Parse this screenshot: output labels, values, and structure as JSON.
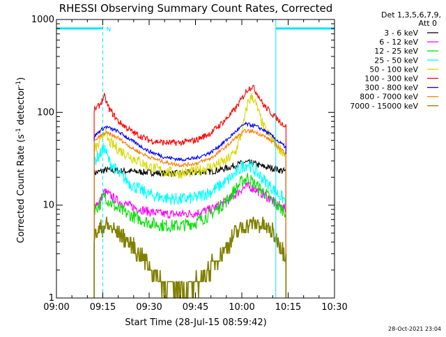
{
  "chart_data": {
    "type": "line",
    "title": "RHESSI Observing Summary Count Rates, Corrected",
    "xlabel": "Start Time (28-Jul-15 08:59:42)",
    "ylabel": "Corrected Count Rate (s",
    "ylabel_sup1": "-1",
    "ylabel_mid": " detector",
    "ylabel_sup2": "-1",
    "ylabel_end": ")",
    "yscale": "log",
    "ylim": [
      1,
      1000
    ],
    "xlim_minutes": [
      0,
      90
    ],
    "x_ticks": [
      {
        "m": 0,
        "label": "09:00"
      },
      {
        "m": 15,
        "label": "09:15"
      },
      {
        "m": 30,
        "label": "09:30"
      },
      {
        "m": 45,
        "label": "09:45"
      },
      {
        "m": 60,
        "label": "10:00"
      },
      {
        "m": 75,
        "label": "10:15"
      },
      {
        "m": 90,
        "label": "10:30"
      }
    ],
    "y_ticks": [
      {
        "v": 1,
        "label": "1"
      },
      {
        "v": 10,
        "label": "10"
      },
      {
        "v": 100,
        "label": "100"
      },
      {
        "v": 1000,
        "label": "1000"
      }
    ],
    "legend_header": [
      "Det 1,3,5,6,7,9,",
      "Att 0"
    ],
    "legend_placement": "right",
    "annotations": {
      "night_marker": "N",
      "footer": "28-Oct-2021 23:04"
    },
    "data_start_min": 12.2,
    "data_end_min": 74.3,
    "night_intervals_min": [
      [
        0,
        15.0
      ],
      [
        71.0,
        90
      ]
    ],
    "night_bar_level": 800,
    "series": [
      {
        "name": "3 - 6 keV",
        "color": "#000000",
        "noise": 0.035,
        "x": [
          12.2,
          14,
          16,
          20,
          25,
          30,
          35,
          40,
          45,
          50,
          55,
          58,
          61,
          64,
          67,
          70,
          72,
          74.3
        ],
        "y": [
          22,
          23,
          24,
          23.5,
          23,
          22.5,
          22,
          22,
          22.5,
          23,
          25,
          27,
          29,
          28,
          26,
          25,
          24,
          23
        ]
      },
      {
        "name": "6 - 12 keV",
        "color": "#ff00ff",
        "noise": 0.05,
        "x": [
          12.2,
          14,
          15.5,
          17,
          20,
          25,
          30,
          35,
          40,
          45,
          50,
          55,
          58,
          60,
          62,
          64,
          67,
          70,
          72,
          74.3
        ],
        "y": [
          10,
          11,
          14,
          13,
          11,
          9.5,
          8.5,
          8,
          8,
          8.2,
          9,
          11,
          13,
          15,
          16,
          15,
          13,
          11,
          10,
          9
        ]
      },
      {
        "name": "12 - 25 keV",
        "color": "#00e000",
        "noise": 0.07,
        "x": [
          12.2,
          14,
          15.5,
          17,
          20,
          25,
          30,
          35,
          40,
          45,
          50,
          55,
          58,
          60,
          62,
          64,
          67,
          70,
          72,
          74.3
        ],
        "y": [
          9,
          10,
          13,
          11,
          9,
          7.5,
          6.5,
          6,
          6,
          6.5,
          8,
          11,
          15,
          18,
          20,
          17,
          14,
          11,
          9.5,
          8.5
        ]
      },
      {
        "name": "25 - 50 keV",
        "color": "#00ffff",
        "noise": 0.07,
        "x": [
          12.2,
          14,
          15.5,
          17,
          20,
          25,
          30,
          35,
          40,
          45,
          50,
          55,
          58,
          60,
          62,
          64,
          67,
          70,
          72,
          74.3
        ],
        "y": [
          30,
          35,
          42,
          30,
          22,
          16,
          13,
          12,
          11.5,
          12,
          14,
          18,
          22,
          26,
          28,
          24,
          19,
          15,
          13,
          11
        ]
      },
      {
        "name": "50 - 100 keV",
        "color": "#d8d800",
        "noise": 0.06,
        "x": [
          12.2,
          14,
          15.5,
          17,
          20,
          25,
          30,
          35,
          40,
          45,
          50,
          55,
          58,
          60,
          62,
          63.5,
          65,
          67,
          70,
          72,
          74.3
        ],
        "y": [
          40,
          45,
          65,
          48,
          40,
          32,
          26,
          23,
          22,
          23,
          26,
          30,
          38,
          60,
          130,
          150,
          110,
          70,
          50,
          42,
          34
        ]
      },
      {
        "name": "100 - 300 keV",
        "color": "#ff0000",
        "noise": 0.035,
        "x": [
          12.2,
          14,
          15.5,
          17,
          20,
          25,
          30,
          35,
          40,
          45,
          50,
          55,
          58,
          60,
          62,
          63.5,
          65,
          67,
          70,
          72,
          74.3
        ],
        "y": [
          105,
          120,
          148,
          110,
          80,
          60,
          50,
          47,
          47,
          50,
          60,
          85,
          110,
          140,
          180,
          190,
          160,
          120,
          95,
          82,
          70
        ]
      },
      {
        "name": "300 - 800 keV",
        "color": "#0000ff",
        "noise": 0.02,
        "x": [
          12.2,
          14,
          16,
          20,
          25,
          30,
          35,
          40,
          45,
          50,
          55,
          58,
          61,
          64,
          67,
          70,
          72,
          74.3
        ],
        "y": [
          55,
          63,
          70,
          62,
          48,
          38,
          33,
          31,
          32,
          37,
          50,
          62,
          75,
          72,
          65,
          55,
          48,
          42
        ]
      },
      {
        "name": "800 - 7000 keV",
        "color": "#ff8000",
        "noise": 0.02,
        "x": [
          12.2,
          14,
          16,
          20,
          25,
          30,
          35,
          40,
          45,
          50,
          55,
          58,
          61,
          64,
          67,
          70,
          72,
          74.3
        ],
        "y": [
          48,
          55,
          60,
          53,
          40,
          33,
          29,
          27,
          28,
          32,
          43,
          53,
          63,
          62,
          56,
          48,
          42,
          36
        ]
      },
      {
        "name": "7000 - 15000 keV",
        "color": "#808000",
        "noise": 0.1,
        "step": true,
        "x": [
          12.2,
          14,
          16,
          20,
          25,
          28,
          32,
          35,
          38,
          42,
          45,
          48,
          52,
          55,
          58,
          61,
          64,
          67,
          70,
          72,
          74.3
        ],
        "y": [
          4.5,
          5.5,
          6,
          5,
          3.5,
          2.6,
          1.8,
          1.4,
          1.3,
          1.3,
          1.4,
          1.8,
          2.6,
          3.5,
          5,
          6,
          6.3,
          6,
          5,
          4,
          3
        ]
      }
    ]
  }
}
